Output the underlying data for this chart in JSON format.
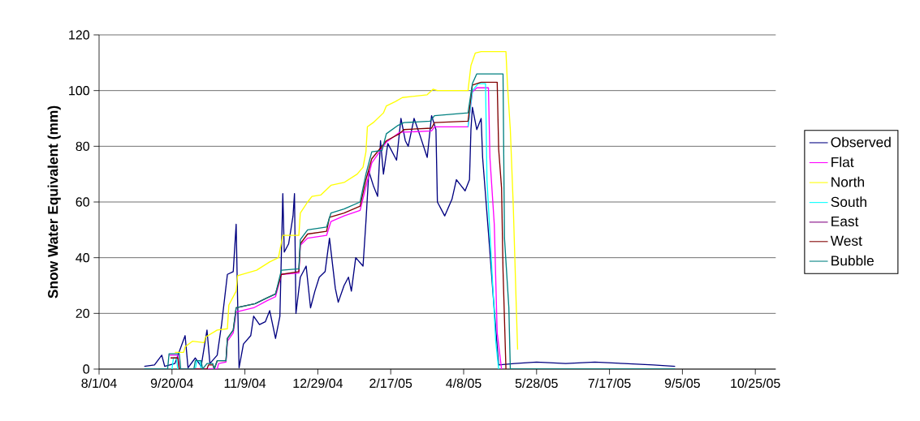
{
  "chart_data": {
    "type": "line",
    "ylabel": "Snow Water Equivalent (mm)",
    "xlim": [
      "2004-08-01",
      "2005-11-08"
    ],
    "ylim": [
      0,
      120
    ],
    "xticks": [
      {
        "value": "2004-08-01",
        "label": "8/1/04"
      },
      {
        "value": "2004-09-20",
        "label": "9/20/04"
      },
      {
        "value": "2004-11-09",
        "label": "11/9/04"
      },
      {
        "value": "2004-12-29",
        "label": "12/29/04"
      },
      {
        "value": "2005-02-17",
        "label": "2/17/05"
      },
      {
        "value": "2005-04-08",
        "label": "4/8/05"
      },
      {
        "value": "2005-05-28",
        "label": "5/28/05"
      },
      {
        "value": "2005-07-17",
        "label": "7/17/05"
      },
      {
        "value": "2005-09-05",
        "label": "9/5/05"
      },
      {
        "value": "2005-10-25",
        "label": "10/25/05"
      }
    ],
    "yticks": [
      0,
      20,
      40,
      60,
      80,
      100,
      120
    ],
    "grid": "y",
    "legend": "right",
    "marker": "none",
    "line_style": "solid",
    "series": [
      {
        "name": "Observed",
        "color": "#000080",
        "x": [
          "2004-09-01",
          "2004-09-08",
          "2004-09-13",
          "2004-09-15",
          "2004-09-22",
          "2004-09-29",
          "2004-10-01",
          "2004-10-06",
          "2004-10-10",
          "2004-10-14",
          "2004-10-16",
          "2004-10-21",
          "2004-10-24",
          "2004-10-28",
          "2004-11-01",
          "2004-11-03",
          "2004-11-04",
          "2004-11-05",
          "2004-11-08",
          "2004-11-13",
          "2004-11-15",
          "2004-11-19",
          "2004-11-23",
          "2004-11-26",
          "2004-11-30",
          "2004-12-03",
          "2004-12-05",
          "2004-12-06",
          "2004-12-09",
          "2004-12-12",
          "2004-12-13",
          "2004-12-14",
          "2004-12-17",
          "2004-12-21",
          "2004-12-24",
          "2004-12-27",
          "2004-12-30",
          "2005-01-03",
          "2005-01-06",
          "2005-01-10",
          "2005-01-12",
          "2005-01-16",
          "2005-01-19",
          "2005-01-21",
          "2005-01-24",
          "2005-01-29",
          "2005-01-31",
          "2005-02-02",
          "2005-02-05",
          "2005-02-08",
          "2005-02-10",
          "2005-02-12",
          "2005-02-15",
          "2005-02-21",
          "2005-02-24",
          "2005-02-27",
          "2005-03-01",
          "2005-03-05",
          "2005-03-09",
          "2005-03-14",
          "2005-03-17",
          "2005-03-20",
          "2005-03-21",
          "2005-03-26",
          "2005-03-31",
          "2005-04-03",
          "2005-04-06",
          "2005-04-09",
          "2005-04-12",
          "2005-04-13",
          "2005-04-14",
          "2005-04-17",
          "2005-04-20",
          "2005-04-21",
          "2005-04-25",
          "2005-04-28",
          "2005-05-01",
          "2005-05-02",
          "2005-05-13",
          "2005-05-28",
          "2005-06-17",
          "2005-07-07",
          "2005-07-27",
          "2005-08-16",
          "2005-08-31"
        ],
        "values": [
          1,
          1.5,
          5,
          1,
          2,
          12,
          0.5,
          4,
          1,
          14,
          2,
          5,
          16,
          34,
          35,
          52,
          25,
          0.5,
          9,
          12,
          19,
          16,
          17,
          21,
          11,
          19,
          63,
          42,
          45,
          55,
          63,
          20,
          33,
          37,
          22,
          28,
          33,
          35,
          47,
          29,
          24,
          30,
          33,
          28,
          40,
          37,
          53,
          71,
          66,
          62,
          82,
          70,
          81,
          75,
          90,
          82,
          80,
          90,
          84,
          76,
          91,
          86,
          60,
          55,
          61,
          68,
          66,
          64,
          68,
          86,
          94,
          86,
          90,
          76,
          49,
          28,
          8,
          1.5,
          2,
          2.5,
          2,
          2.5,
          2,
          1.5,
          1
        ]
      },
      {
        "name": "Flat",
        "color": "#ff00ff",
        "x": [
          "2004-09-18",
          "2004-09-24",
          "2004-09-25",
          "2004-10-21",
          "2004-10-22",
          "2004-10-27",
          "2004-10-28",
          "2004-11-01",
          "2004-11-03",
          "2004-11-15",
          "2004-11-24",
          "2004-11-30",
          "2004-12-04",
          "2004-12-16",
          "2004-12-17",
          "2004-12-22",
          "2005-01-04",
          "2005-01-07",
          "2005-01-16",
          "2005-01-27",
          "2005-01-31",
          "2005-02-04",
          "2005-02-14",
          "2005-02-23",
          "2005-03-17",
          "2005-03-19",
          "2005-04-11",
          "2005-04-14",
          "2005-04-17",
          "2005-04-25",
          "2005-04-26",
          "2005-04-29",
          "2005-05-01",
          "2005-05-04"
        ],
        "values": [
          5,
          5,
          0,
          0,
          2,
          2.5,
          10,
          13,
          20.5,
          22,
          24.5,
          26,
          34,
          34.5,
          44.5,
          47,
          48,
          53,
          55,
          57,
          65.5,
          74,
          81.5,
          85,
          85.5,
          87,
          87,
          99.5,
          101,
          101,
          76,
          52,
          13,
          0
        ]
      },
      {
        "name": "North",
        "color": "#ffff00",
        "x": [
          "2004-09-22",
          "2004-09-28",
          "2004-09-29",
          "2004-10-04",
          "2004-10-12",
          "2004-10-13",
          "2004-10-21",
          "2004-10-28",
          "2004-10-29",
          "2004-11-03",
          "2004-11-04",
          "2004-11-17",
          "2004-11-26",
          "2004-12-02",
          "2004-12-05",
          "2004-12-16",
          "2004-12-17",
          "2004-12-22",
          "2004-12-25",
          "2004-12-31",
          "2005-01-07",
          "2005-01-16",
          "2005-01-25",
          "2005-01-29",
          "2005-01-31",
          "2005-02-01",
          "2005-02-05",
          "2005-02-12",
          "2005-02-14",
          "2005-02-20",
          "2005-02-25",
          "2005-03-14",
          "2005-03-18",
          "2005-03-21",
          "2005-04-11",
          "2005-04-13",
          "2005-04-16",
          "2005-04-20",
          "2005-05-07",
          "2005-05-08",
          "2005-05-10",
          "2005-05-12",
          "2005-05-14",
          "2005-05-15"
        ],
        "values": [
          6,
          6,
          8,
          10,
          9.5,
          11.5,
          14,
          14.5,
          23,
          28,
          33.5,
          35.5,
          38.5,
          40,
          48,
          48,
          56,
          60,
          62,
          62.5,
          66,
          67,
          70,
          72.5,
          78,
          87,
          88.5,
          92,
          94.5,
          96,
          97.5,
          98.5,
          100.5,
          100,
          100,
          109,
          113.5,
          114,
          114,
          102.5,
          86,
          59,
          24,
          7
        ]
      },
      {
        "name": "South",
        "color": "#00ffff",
        "x": [
          "2004-09-20",
          "2004-09-21",
          "2004-09-23",
          "2004-09-24",
          "2004-09-30",
          "2004-10-06",
          "2004-10-07",
          "2004-10-09",
          "2004-10-10",
          "2004-10-20",
          "2005-04-11",
          "2005-04-14",
          "2005-04-18",
          "2005-04-23",
          "2005-04-24",
          "2005-04-27",
          "2005-04-30",
          "2005-05-02"
        ],
        "values": [
          0,
          4,
          4,
          0,
          null,
          0,
          3,
          3,
          0,
          null,
          87,
          100,
          102.5,
          102.5,
          68,
          39,
          10,
          0
        ]
      },
      {
        "name": "East",
        "color": "#800080"
      },
      {
        "name": "West",
        "color": "#800000",
        "x": [
          "2004-09-19",
          "2004-09-24",
          "2004-09-25",
          "2004-10-14",
          "2004-10-15",
          "2004-10-18",
          "2004-10-19",
          "2004-10-21",
          "2004-10-27",
          "2004-10-28",
          "2004-11-01",
          "2004-11-03",
          "2004-11-16",
          "2004-11-24",
          "2004-11-30",
          "2004-12-04",
          "2004-12-16",
          "2004-12-17",
          "2004-12-22",
          "2005-01-04",
          "2005-01-06",
          "2005-01-16",
          "2005-01-27",
          "2005-01-31",
          "2005-02-04",
          "2005-02-14",
          "2005-02-23",
          "2005-02-26",
          "2005-03-17",
          "2005-03-19",
          "2005-04-11",
          "2005-04-14",
          "2005-04-20",
          "2005-05-01",
          "2005-05-02",
          "2005-05-04",
          "2005-05-05",
          "2005-05-07"
        ],
        "values": [
          4,
          4,
          0,
          0,
          1.5,
          1.5,
          0,
          3,
          3,
          11,
          14,
          22,
          23.5,
          25.5,
          27,
          34,
          35,
          45,
          48.5,
          49.5,
          54.5,
          56,
          58.5,
          68,
          75.5,
          82,
          84.5,
          86,
          86.5,
          88.5,
          89,
          102,
          103,
          103,
          79,
          65,
          35.5,
          0
        ]
      },
      {
        "name": "Bubble",
        "color": "#008080",
        "x": [
          "2004-09-01",
          "2004-09-17",
          "2004-09-18",
          "2004-09-25",
          "2004-09-26",
          "2004-10-05",
          "2004-10-06",
          "2004-10-10",
          "2004-10-11",
          "2004-10-14",
          "2004-10-18",
          "2004-10-19",
          "2004-10-21",
          "2004-10-27",
          "2004-10-28",
          "2004-11-01",
          "2004-11-03",
          "2004-11-16",
          "2004-11-24",
          "2004-11-30",
          "2004-12-04",
          "2004-12-16",
          "2004-12-17",
          "2004-12-22",
          "2005-01-04",
          "2005-01-07",
          "2005-01-16",
          "2005-01-27",
          "2005-01-31",
          "2005-02-04",
          "2005-02-11",
          "2005-02-14",
          "2005-02-22",
          "2005-02-26",
          "2005-03-16",
          "2005-03-19",
          "2005-04-11",
          "2005-04-14",
          "2005-04-17",
          "2005-05-05",
          "2005-05-06",
          "2005-05-09",
          "2005-05-10",
          "2005-08-31"
        ],
        "values": [
          0,
          0,
          5.5,
          5.5,
          0,
          0,
          3,
          3,
          0,
          2,
          2,
          0,
          3,
          3,
          11,
          14,
          22,
          23.5,
          25.5,
          27,
          35.5,
          36,
          46.5,
          50,
          51,
          56,
          57.5,
          60,
          70,
          78,
          78.5,
          84.5,
          87.5,
          88.5,
          89,
          91,
          92,
          102.5,
          106,
          106,
          47,
          22,
          0,
          0
        ]
      }
    ]
  }
}
